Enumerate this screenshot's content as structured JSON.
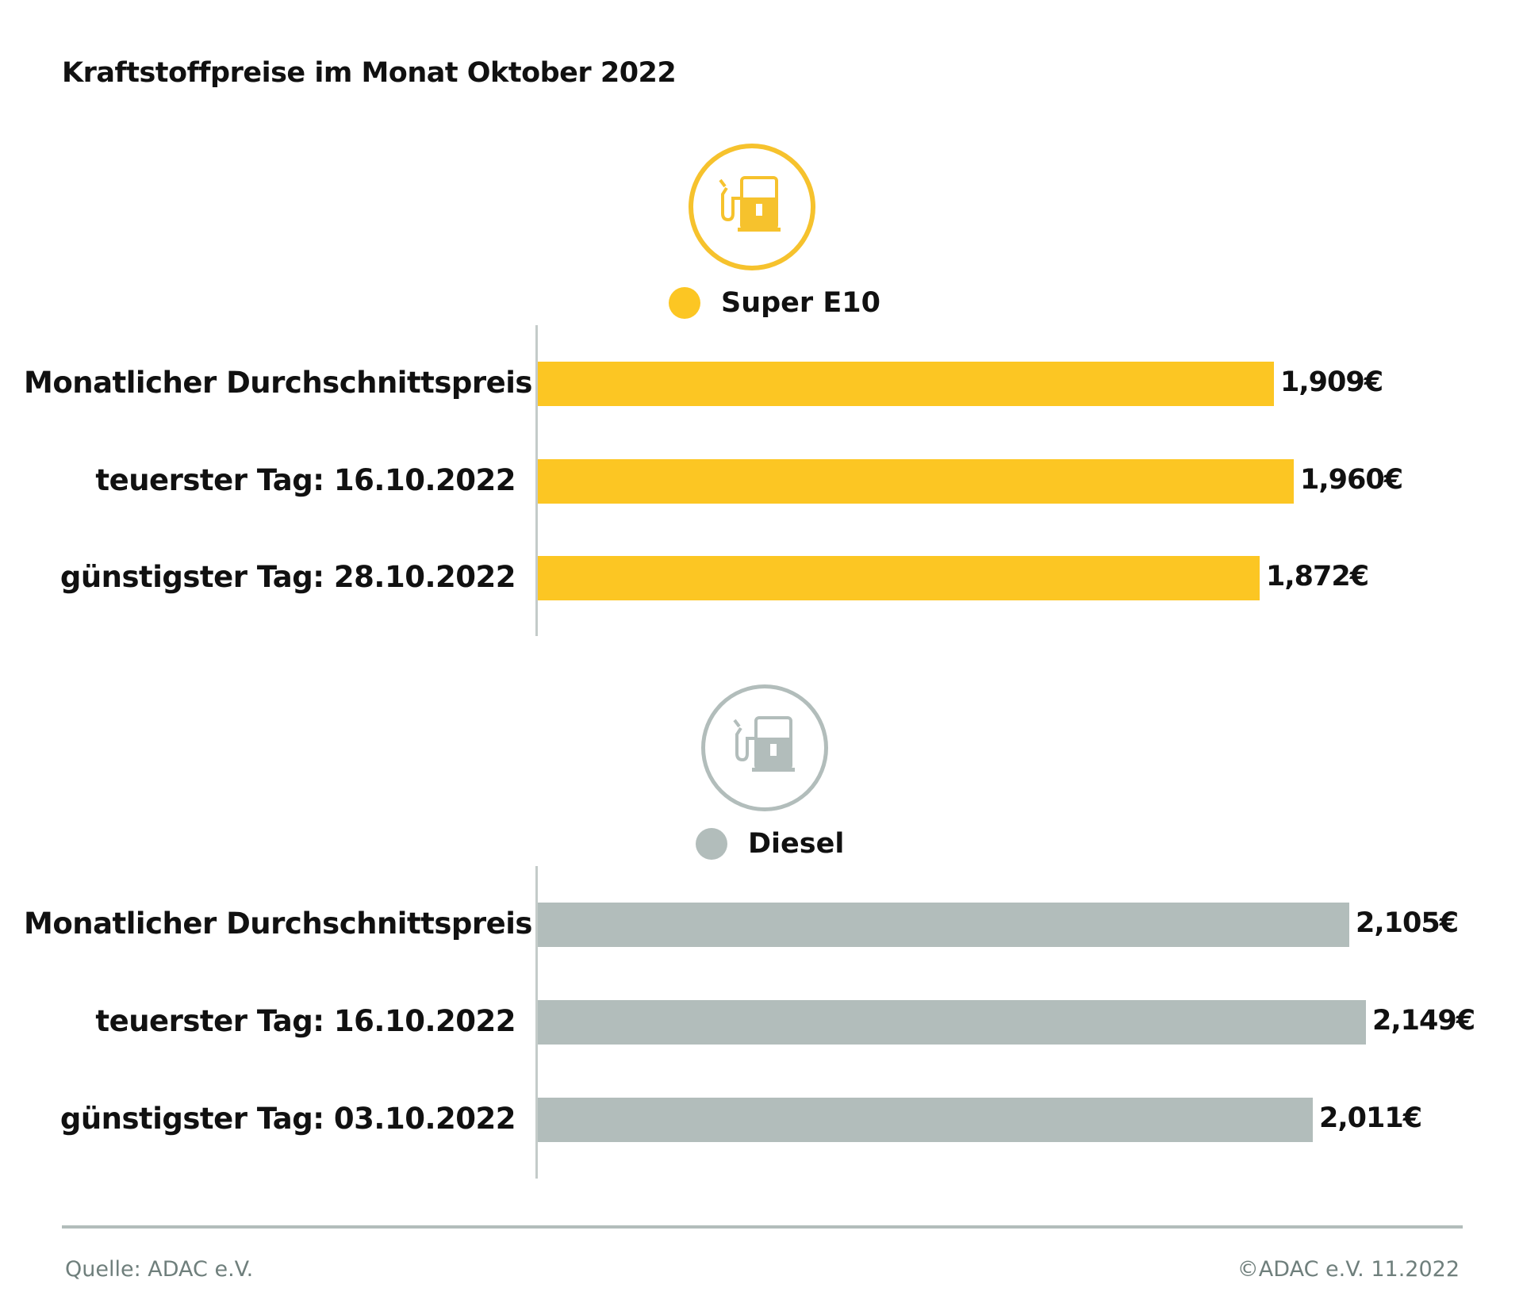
{
  "title": "Kraftstoffpreise im Monat Oktober 2022",
  "chart_data": [
    {
      "type": "bar",
      "orientation": "horizontal",
      "series_name": "Super E10",
      "icon": "fuel-pump-icon",
      "color": "#fcc623",
      "ring_color": "#f6c22d",
      "categories": [
        "Monatlicher Durchschnittspreis",
        "teuerster Tag: 16.10.2022",
        "günstigster Tag: 28.10.2022"
      ],
      "values": [
        1.909,
        1.96,
        1.872
      ],
      "value_labels": [
        "1,909€",
        "1,960€",
        "1,872€"
      ]
    },
    {
      "type": "bar",
      "orientation": "horizontal",
      "series_name": "Diesel",
      "icon": "fuel-pump-icon",
      "color": "#b2bdbb",
      "ring_color": "#b2bdbb",
      "categories": [
        "Monatlicher Durchschnittspreis",
        "teuerster Tag: 16.10.2022",
        "günstigster Tag: 03.10.2022"
      ],
      "values": [
        2.105,
        2.149,
        2.011
      ],
      "value_labels": [
        "2,105€",
        "2,149€",
        "2,011€"
      ]
    }
  ],
  "footer": {
    "source": "Quelle: ADAC e.V.",
    "copyright": "©ADAC e.V. 11.2022"
  }
}
